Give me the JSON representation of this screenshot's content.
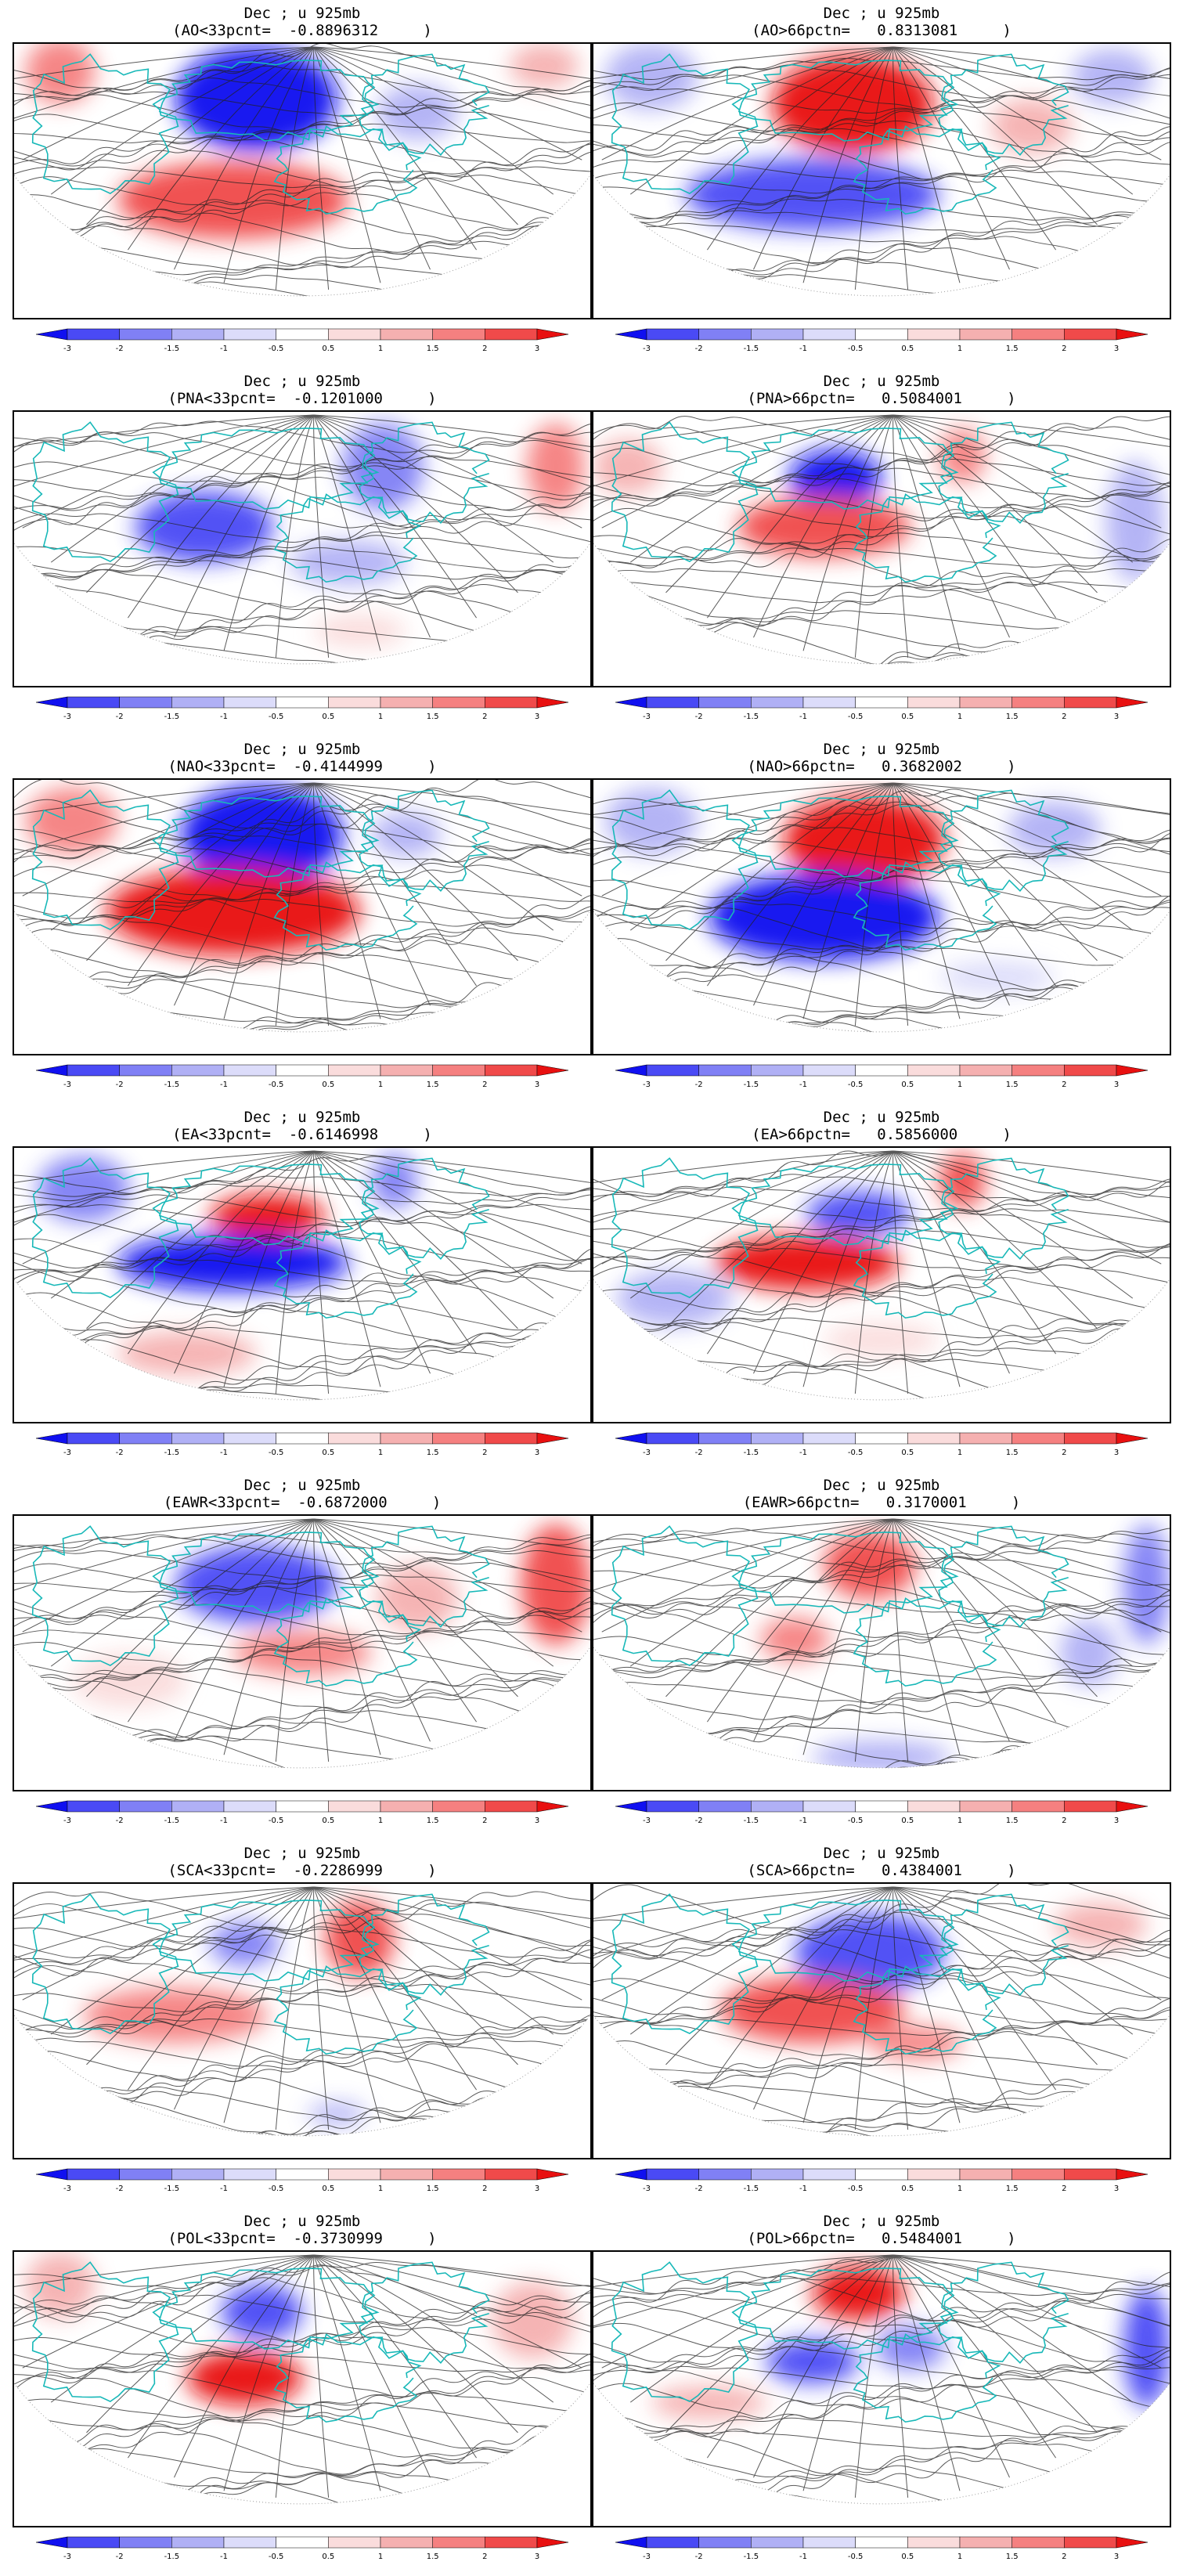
{
  "figure": {
    "colorbar": {
      "tick_labels": [
        "-3",
        "-2",
        "-1.5",
        "-1",
        "-0.5",
        "0.5",
        "1",
        "1.5",
        "2",
        "3"
      ],
      "colors": [
        "#1010f0",
        "#4a4af5",
        "#8080f5",
        "#b0b0f5",
        "#dcdcfa",
        "#ffffff",
        "#fadcdc",
        "#f5b0b0",
        "#f58080",
        "#f04a4a",
        "#e81010"
      ]
    },
    "panels": [
      {
        "line1": "Dec ; u 925mb",
        "line2": "(AO<33pcnt=  -0.8896312     )",
        "anomalies": [
          {
            "v": -3,
            "c": [
              0.42,
              0.2
            ],
            "r": [
              0.14,
              0.19
            ]
          },
          {
            "v": 2.5,
            "c": [
              0.38,
              0.57
            ],
            "r": [
              0.2,
              0.14
            ]
          },
          {
            "v": 1.5,
            "c": [
              0.08,
              0.1
            ],
            "r": [
              0.06,
              0.12
            ]
          },
          {
            "v": -1,
            "c": [
              0.7,
              0.25
            ],
            "r": [
              0.07,
              0.1
            ]
          },
          {
            "v": 1,
            "c": [
              0.92,
              0.08
            ],
            "r": [
              0.06,
              0.08
            ]
          }
        ]
      },
      {
        "line1": "Dec ; u 925mb",
        "line2": "(AO>66pctn=   0.8313081     )",
        "anomalies": [
          {
            "v": 3,
            "c": [
              0.45,
              0.22
            ],
            "r": [
              0.14,
              0.18
            ]
          },
          {
            "v": -2.5,
            "c": [
              0.38,
              0.55
            ],
            "r": [
              0.22,
              0.13
            ]
          },
          {
            "v": -1,
            "c": [
              0.1,
              0.12
            ],
            "r": [
              0.08,
              0.12
            ]
          },
          {
            "v": -1,
            "c": [
              0.9,
              0.12
            ],
            "r": [
              0.07,
              0.1
            ]
          },
          {
            "v": 1,
            "c": [
              0.76,
              0.3
            ],
            "r": [
              0.07,
              0.1
            ]
          }
        ]
      },
      {
        "line1": "Dec ; u 925mb",
        "line2": "(PNA<33pcnt=  -0.1201000     )",
        "anomalies": [
          {
            "v": -2.5,
            "c": [
              0.33,
              0.42
            ],
            "r": [
              0.12,
              0.13
            ]
          },
          {
            "v": -1.5,
            "c": [
              0.64,
              0.2
            ],
            "r": [
              0.07,
              0.16
            ]
          },
          {
            "v": 1.5,
            "c": [
              0.94,
              0.2
            ],
            "r": [
              0.05,
              0.16
            ]
          },
          {
            "v": -1,
            "c": [
              0.58,
              0.55
            ],
            "r": [
              0.1,
              0.08
            ]
          },
          {
            "v": 0.5,
            "c": [
              0.6,
              0.8
            ],
            "r": [
              0.08,
              0.06
            ]
          }
        ]
      },
      {
        "line1": "Dec ; u 925mb",
        "line2": "(PNA>66pctn=   0.5084001     )",
        "anomalies": [
          {
            "v": -3,
            "c": [
              0.42,
              0.24
            ],
            "r": [
              0.08,
              0.1
            ]
          },
          {
            "v": 2.5,
            "c": [
              0.4,
              0.42
            ],
            "r": [
              0.15,
              0.11
            ]
          },
          {
            "v": 1.5,
            "c": [
              0.64,
              0.16
            ],
            "r": [
              0.04,
              0.1
            ]
          },
          {
            "v": -1,
            "c": [
              0.94,
              0.4
            ],
            "r": [
              0.05,
              0.22
            ]
          },
          {
            "v": 1,
            "c": [
              0.06,
              0.2
            ],
            "r": [
              0.06,
              0.1
            ]
          }
        ]
      },
      {
        "line1": "Dec ; u 925mb",
        "line2": "(NAO<33pcnt=  -0.4144999     )",
        "anomalies": [
          {
            "v": -3,
            "c": [
              0.43,
              0.2
            ],
            "r": [
              0.14,
              0.18
            ]
          },
          {
            "v": 3,
            "c": [
              0.38,
              0.48
            ],
            "r": [
              0.22,
              0.16
            ]
          },
          {
            "v": 1.5,
            "c": [
              0.1,
              0.15
            ],
            "r": [
              0.08,
              0.12
            ]
          },
          {
            "v": -1,
            "c": [
              0.68,
              0.2
            ],
            "r": [
              0.06,
              0.08
            ]
          }
        ]
      },
      {
        "line1": "Dec ; u 925mb",
        "line2": "(NAO>66pctn=   0.3682002     )",
        "anomalies": [
          {
            "v": 3,
            "c": [
              0.47,
              0.22
            ],
            "r": [
              0.14,
              0.16
            ]
          },
          {
            "v": -3,
            "c": [
              0.4,
              0.5
            ],
            "r": [
              0.2,
              0.16
            ]
          },
          {
            "v": -1,
            "c": [
              0.1,
              0.15
            ],
            "r": [
              0.08,
              0.12
            ]
          },
          {
            "v": -1,
            "c": [
              0.8,
              0.18
            ],
            "r": [
              0.08,
              0.1
            ]
          },
          {
            "v": -0.5,
            "c": [
              0.7,
              0.72
            ],
            "r": [
              0.1,
              0.06
            ]
          }
        ]
      },
      {
        "line1": "Dec ; u 925mb",
        "line2": "(EA<33pcnt=  -0.6146998     )",
        "anomalies": [
          {
            "v": 3,
            "c": [
              0.44,
              0.25
            ],
            "r": [
              0.1,
              0.08
            ]
          },
          {
            "v": -3,
            "c": [
              0.38,
              0.42
            ],
            "r": [
              0.2,
              0.1
            ]
          },
          {
            "v": -1.5,
            "c": [
              0.12,
              0.15
            ],
            "r": [
              0.08,
              0.12
            ]
          },
          {
            "v": -1.5,
            "c": [
              0.66,
              0.12
            ],
            "r": [
              0.04,
              0.1
            ]
          },
          {
            "v": 1,
            "c": [
              0.3,
              0.75
            ],
            "r": [
              0.12,
              0.08
            ]
          }
        ]
      },
      {
        "line1": "Dec ; u 925mb",
        "line2": "(EA>66pctn=   0.5856000     )",
        "anomalies": [
          {
            "v": -2.5,
            "c": [
              0.46,
              0.24
            ],
            "r": [
              0.09,
              0.08
            ]
          },
          {
            "v": 3,
            "c": [
              0.37,
              0.42
            ],
            "r": [
              0.16,
              0.1
            ]
          },
          {
            "v": 2,
            "c": [
              0.64,
              0.12
            ],
            "r": [
              0.04,
              0.1
            ]
          },
          {
            "v": -1,
            "c": [
              0.14,
              0.55
            ],
            "r": [
              0.1,
              0.1
            ]
          },
          {
            "v": 0.5,
            "c": [
              0.5,
              0.7
            ],
            "r": [
              0.1,
              0.06
            ]
          }
        ]
      },
      {
        "line1": "Dec ; u 925mb",
        "line2": "(EAWR<33pcnt=  -0.6872000     )",
        "anomalies": [
          {
            "v": -2.5,
            "c": [
              0.42,
              0.25
            ],
            "r": [
              0.14,
              0.14
            ]
          },
          {
            "v": 1.5,
            "c": [
              0.5,
              0.5
            ],
            "r": [
              0.12,
              0.08
            ]
          },
          {
            "v": 2.5,
            "c": [
              0.94,
              0.25
            ],
            "r": [
              0.06,
              0.22
            ]
          },
          {
            "v": 1,
            "c": [
              0.7,
              0.3
            ],
            "r": [
              0.07,
              0.12
            ]
          },
          {
            "v": 0.5,
            "c": [
              0.2,
              0.6
            ],
            "r": [
              0.1,
              0.1
            ]
          }
        ]
      },
      {
        "line1": "Dec ; u 925mb",
        "line2": "(EAWR>66pctn=   0.3170001     )",
        "anomalies": [
          {
            "v": 2,
            "c": [
              0.48,
              0.18
            ],
            "r": [
              0.08,
              0.12
            ]
          },
          {
            "v": -1.5,
            "c": [
              0.96,
              0.25
            ],
            "r": [
              0.04,
              0.22
            ]
          },
          {
            "v": 1.5,
            "c": [
              0.35,
              0.45
            ],
            "r": [
              0.06,
              0.08
            ]
          },
          {
            "v": -1,
            "c": [
              0.5,
              0.88
            ],
            "r": [
              0.12,
              0.06
            ]
          },
          {
            "v": -1,
            "c": [
              0.86,
              0.5
            ],
            "r": [
              0.05,
              0.12
            ]
          }
        ]
      },
      {
        "line1": "Dec ; u 925mb",
        "line2": "(SCA<33pcnt=  -0.2286999     )",
        "anomalies": [
          {
            "v": 2.5,
            "c": [
              0.6,
              0.2
            ],
            "r": [
              0.06,
              0.14
            ]
          },
          {
            "v": 1.5,
            "c": [
              0.28,
              0.48
            ],
            "r": [
              0.16,
              0.1
            ]
          },
          {
            "v": -1.5,
            "c": [
              0.4,
              0.22
            ],
            "r": [
              0.06,
              0.08
            ]
          },
          {
            "v": -1,
            "c": [
              0.56,
              0.84
            ],
            "r": [
              0.05,
              0.04
            ]
          }
        ]
      },
      {
        "line1": "Dec ; u 925mb",
        "line2": "(SCA>66pctn=   0.4384001     )",
        "anomalies": [
          {
            "v": -2.5,
            "c": [
              0.48,
              0.25
            ],
            "r": [
              0.13,
              0.14
            ]
          },
          {
            "v": 2.5,
            "c": [
              0.38,
              0.46
            ],
            "r": [
              0.16,
              0.12
            ]
          },
          {
            "v": 1.5,
            "c": [
              0.56,
              0.58
            ],
            "r": [
              0.08,
              0.06
            ]
          },
          {
            "v": 1,
            "c": [
              0.88,
              0.15
            ],
            "r": [
              0.08,
              0.08
            ]
          }
        ]
      },
      {
        "line1": "Dec ; u 925mb",
        "line2": "(POL<33pcnt=  -0.3730999     )",
        "anomalies": [
          {
            "v": -2.5,
            "c": [
              0.43,
              0.22
            ],
            "r": [
              0.07,
              0.1
            ]
          },
          {
            "v": 3,
            "c": [
              0.4,
              0.46
            ],
            "r": [
              0.1,
              0.1
            ]
          },
          {
            "v": 1,
            "c": [
              0.08,
              0.12
            ],
            "r": [
              0.06,
              0.12
            ]
          },
          {
            "v": 1,
            "c": [
              0.9,
              0.25
            ],
            "r": [
              0.07,
              0.14
            ]
          }
        ]
      },
      {
        "line1": "Dec ; u 925mb",
        "line2": "(POL>66pctn=   0.5484001     )",
        "anomalies": [
          {
            "v": 3,
            "c": [
              0.46,
              0.15
            ],
            "r": [
              0.08,
              0.1
            ]
          },
          {
            "v": -2.5,
            "c": [
              0.38,
              0.4
            ],
            "r": [
              0.08,
              0.08
            ]
          },
          {
            "v": -1.5,
            "c": [
              0.55,
              0.35
            ],
            "r": [
              0.06,
              0.08
            ]
          },
          {
            "v": -2,
            "c": [
              0.96,
              0.35
            ],
            "r": [
              0.04,
              0.22
            ]
          },
          {
            "v": 1,
            "c": [
              0.2,
              0.55
            ],
            "r": [
              0.1,
              0.06
            ]
          }
        ]
      }
    ]
  }
}
